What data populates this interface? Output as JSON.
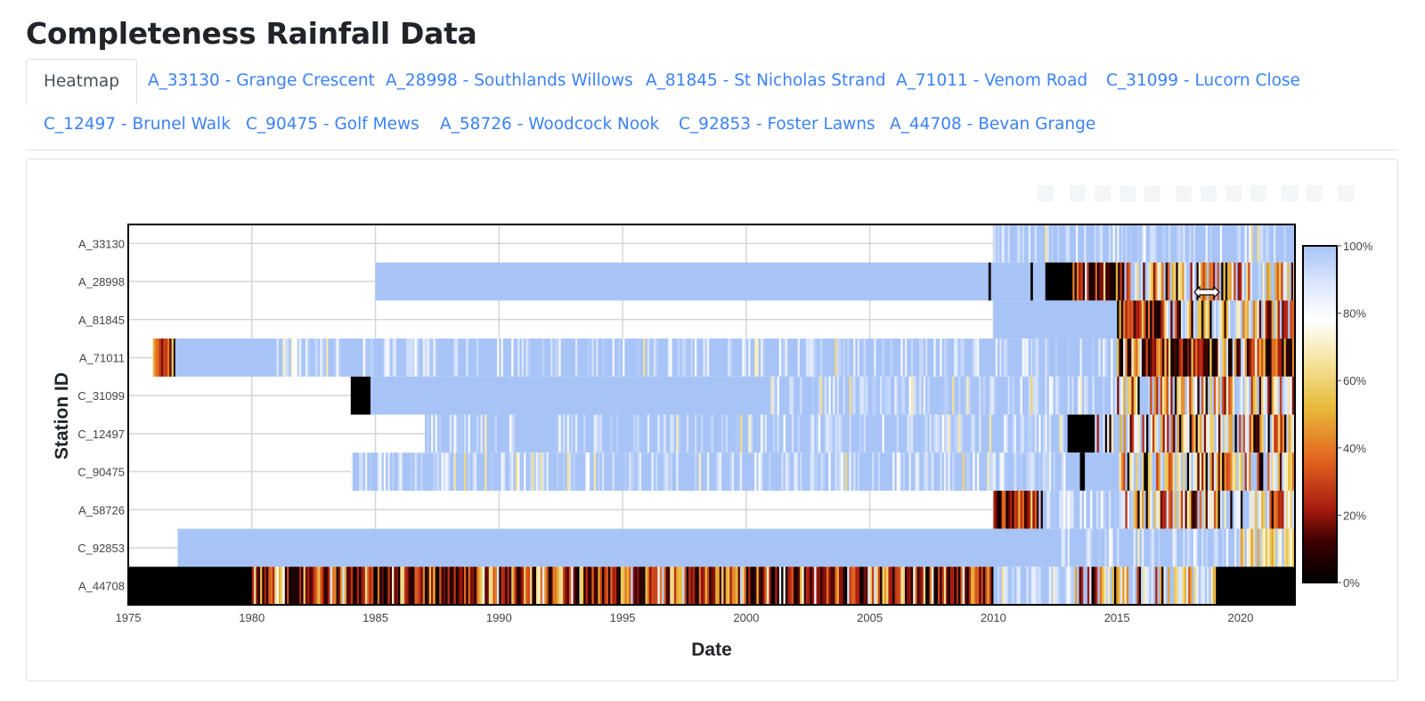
{
  "page": {
    "title": "Completeness Rainfall Data"
  },
  "tabs": [
    {
      "label": "Heatmap",
      "active": true
    },
    {
      "label": "A_33130 - Grange Crescent"
    },
    {
      "label": "A_28998 - Southlands Willows"
    },
    {
      "label": "A_81845 - St Nicholas Strand"
    },
    {
      "label": "A_71011 - Venom Road"
    },
    {
      "label": "C_31099 - Lucorn Close"
    },
    {
      "label": "C_12497 - Brunel Walk"
    },
    {
      "label": "C_90475 - Golf Mews"
    },
    {
      "label": "A_58726 - Woodcock Nook"
    },
    {
      "label": "C_92853 - Foster Lawns"
    },
    {
      "label": "A_44708 - Bevan Grange"
    }
  ],
  "colors": {
    "link": "#3b82f6",
    "border": "#dee2e6"
  },
  "chart_data": {
    "type": "heatmap",
    "title": "",
    "xlabel": "Date",
    "ylabel": "Station ID",
    "xlim": [
      1975,
      2022.2
    ],
    "xticks": [
      1975,
      1980,
      1985,
      1990,
      1995,
      2000,
      2005,
      2010,
      2015,
      2020
    ],
    "stations": [
      "A_33130",
      "A_28998",
      "A_81845",
      "A_71011",
      "C_31099",
      "C_12497",
      "C_90475",
      "A_58726",
      "C_92853",
      "A_44708"
    ],
    "colorbar": {
      "ticks": [
        "0%",
        "20%",
        "40%",
        "60%",
        "80%",
        "100%"
      ],
      "values": [
        0,
        20,
        40,
        60,
        80,
        100
      ]
    },
    "series": [
      {
        "name": "A_33130",
        "segments": [
          {
            "start": 2010,
            "end": 2015.5,
            "mode": "mostly-complete"
          },
          {
            "start": 2015.5,
            "end": 2022.2,
            "mode": "mostly-complete"
          }
        ]
      },
      {
        "name": "A_28998",
        "segments": [
          {
            "start": 1985,
            "end": 2009.8,
            "mode": "complete"
          },
          {
            "start": 2009.8,
            "end": 2009.9,
            "mode": "missing"
          },
          {
            "start": 2009.9,
            "end": 2011.5,
            "mode": "complete"
          },
          {
            "start": 2011.5,
            "end": 2011.6,
            "mode": "missing"
          },
          {
            "start": 2011.6,
            "end": 2012.1,
            "mode": "complete"
          },
          {
            "start": 2012.1,
            "end": 2013.2,
            "mode": "missing"
          },
          {
            "start": 2013.2,
            "end": 2015.3,
            "mode": "mixed-low"
          },
          {
            "start": 2015.3,
            "end": 2022.2,
            "mode": "mixed-mid"
          }
        ]
      },
      {
        "name": "A_81845",
        "segments": [
          {
            "start": 2010,
            "end": 2015,
            "mode": "complete"
          },
          {
            "start": 2015,
            "end": 2017,
            "mode": "mixed-low"
          },
          {
            "start": 2017,
            "end": 2022.2,
            "mode": "mixed-mid"
          }
        ]
      },
      {
        "name": "A_71011",
        "segments": [
          {
            "start": 1976,
            "end": 1976.9,
            "mode": "mixed-low"
          },
          {
            "start": 1976.9,
            "end": 1981,
            "mode": "complete"
          },
          {
            "start": 1981,
            "end": 2015,
            "mode": "mostly-complete"
          },
          {
            "start": 2015,
            "end": 2022.2,
            "mode": "mixed-low"
          }
        ]
      },
      {
        "name": "C_31099",
        "segments": [
          {
            "start": 1984,
            "end": 1984.8,
            "mode": "missing"
          },
          {
            "start": 1984.8,
            "end": 2001,
            "mode": "complete"
          },
          {
            "start": 2001,
            "end": 2015,
            "mode": "mostly-complete"
          },
          {
            "start": 2015,
            "end": 2022.2,
            "mode": "mixed-mid"
          }
        ]
      },
      {
        "name": "C_12497",
        "segments": [
          {
            "start": 1987,
            "end": 2013,
            "mode": "mostly-complete"
          },
          {
            "start": 2013,
            "end": 2014.1,
            "mode": "missing"
          },
          {
            "start": 2014.1,
            "end": 2022.2,
            "mode": "mixed-mid"
          }
        ]
      },
      {
        "name": "C_90475",
        "segments": [
          {
            "start": 1984,
            "end": 2013.5,
            "mode": "mostly-complete"
          },
          {
            "start": 2013.5,
            "end": 2013.7,
            "mode": "missing"
          },
          {
            "start": 2013.7,
            "end": 2015,
            "mode": "complete"
          },
          {
            "start": 2015,
            "end": 2022.2,
            "mode": "mixed-mid"
          }
        ]
      },
      {
        "name": "A_58726",
        "segments": [
          {
            "start": 2010,
            "end": 2012,
            "mode": "mixed-low"
          },
          {
            "start": 2012,
            "end": 2015,
            "mode": "mostly-complete"
          },
          {
            "start": 2015,
            "end": 2022.2,
            "mode": "mixed-mid"
          }
        ]
      },
      {
        "name": "C_92853",
        "segments": [
          {
            "start": 1977,
            "end": 2012,
            "mode": "complete"
          },
          {
            "start": 2012,
            "end": 2020,
            "mode": "mostly-complete"
          },
          {
            "start": 2020,
            "end": 2022.2,
            "mode": "mixed-high"
          }
        ]
      },
      {
        "name": "A_44708",
        "segments": [
          {
            "start": 1975,
            "end": 1980,
            "mode": "missing"
          },
          {
            "start": 1980,
            "end": 2010,
            "mode": "mixed-low"
          },
          {
            "start": 2010,
            "end": 2013.3,
            "mode": "mostly-complete"
          },
          {
            "start": 2013.3,
            "end": 2019,
            "mode": "mixed-mid"
          },
          {
            "start": 2019,
            "end": 2022.2,
            "mode": "missing"
          }
        ]
      }
    ]
  }
}
